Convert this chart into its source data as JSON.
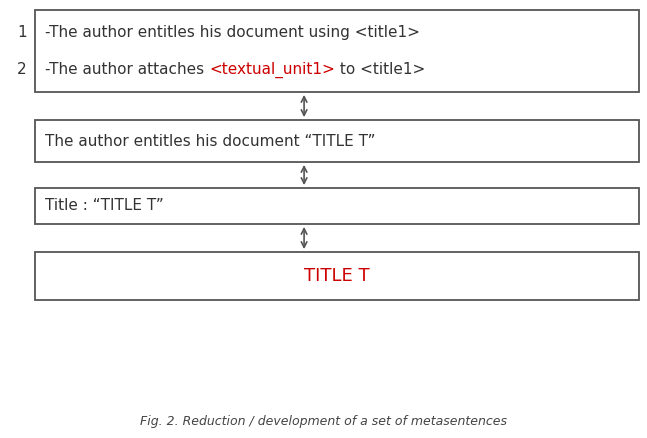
{
  "title": "Fig. 2. Reduction / development of a set of metasentences",
  "background_color": "#ffffff",
  "box_edge_color": "#555555",
  "box_face_color": "#ffffff",
  "arrow_color": "#555555",
  "text_color_black": "#333333",
  "text_color_red": "#cc0000",
  "figsize": [
    6.47,
    4.38
  ],
  "dpi": 100,
  "box1_line1": "-The author entitles his document using <title1>",
  "box1_line2_black1": "-The author attaches ",
  "box1_line2_red": "<textual_unit1>",
  "box1_line2_black2": " to <title1>",
  "box2_text": "The author entitles his document “TITLE T”",
  "box3_text": "Title : “TITLE T”",
  "box4_text": "TITLE T",
  "font_size": 11,
  "caption_font_size": 9
}
